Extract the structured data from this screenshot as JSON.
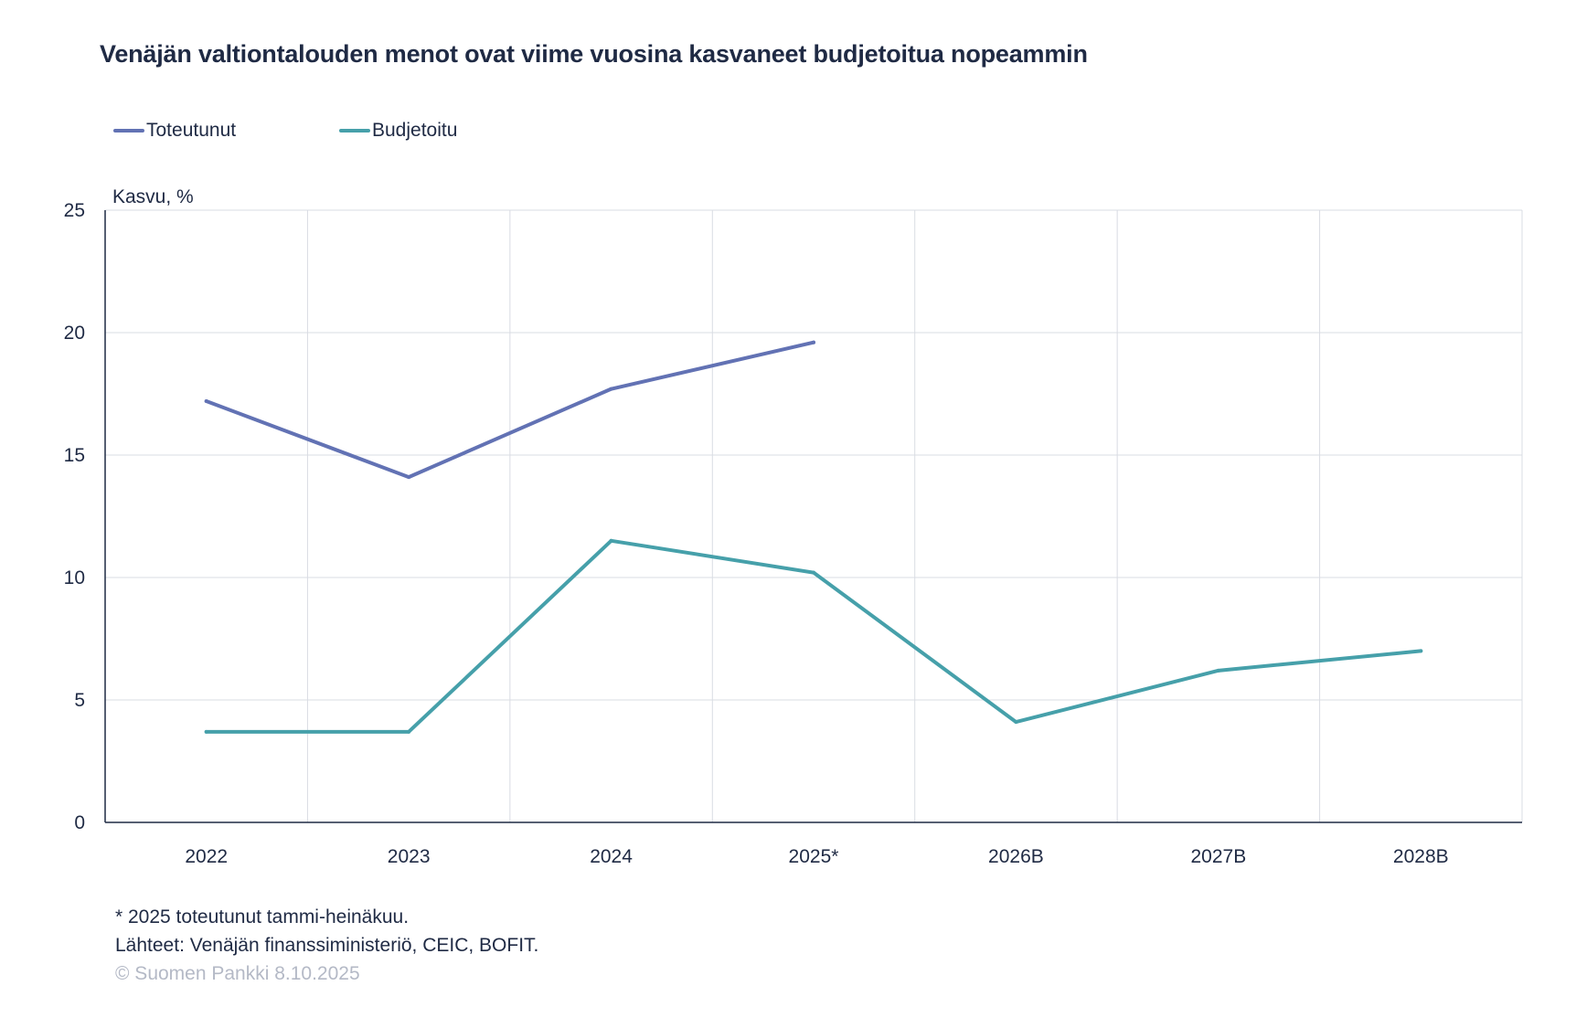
{
  "chart_data": {
    "type": "line",
    "title": "Venäjän valtiontalouden menot ovat viime vuosina kasvaneet budjetoitua nopeammin",
    "ylabel": "Kasvu, %",
    "xlabel": "",
    "categories": [
      "2022",
      "2023",
      "2024",
      "2025*",
      "2026B",
      "2027B",
      "2028B"
    ],
    "ylim": [
      0,
      25
    ],
    "yticks": [
      0,
      5,
      10,
      15,
      20,
      25
    ],
    "grid": true,
    "legend_position": "top-left",
    "series": [
      {
        "name": "Toteutunut",
        "color": "#6272b4",
        "values": [
          17.2,
          14.1,
          17.7,
          19.6,
          null,
          null,
          null
        ]
      },
      {
        "name": "Budjetoitu",
        "color": "#46a0aa",
        "values": [
          3.7,
          3.7,
          11.5,
          10.2,
          4.1,
          6.2,
          7.0
        ]
      }
    ]
  },
  "footnotes": {
    "note": "* 2025 toteutunut tammi-heinäkuu.",
    "sources": "Lähteet: Venäjän finanssiministeriö, CEIC, BOFIT.",
    "copyright": "© Suomen Pankki 8.10.2025"
  },
  "colors": {
    "text": "#1f2a44",
    "grid": "#d9dce3",
    "axis": "#1f2a44",
    "copyright": "#b4b9c6"
  }
}
